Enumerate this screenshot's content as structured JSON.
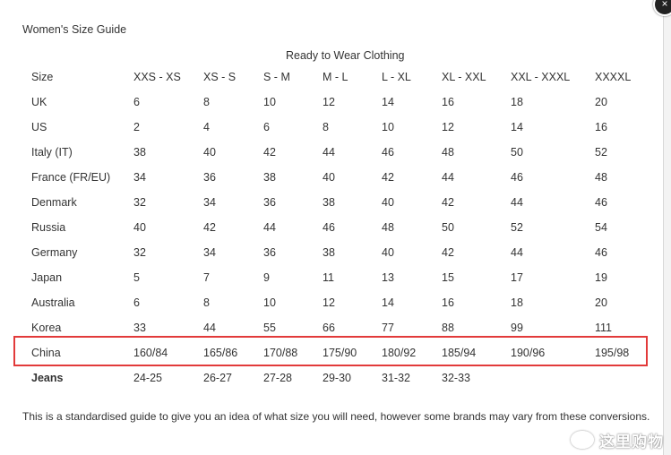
{
  "page": {
    "title": "Women's Size Guide",
    "caption": "Ready to Wear Clothing",
    "footnote": "This is a standardised guide to give you an idea of what size you will need, however some brands may vary from these conversions.",
    "close_icon": "×",
    "watermark": "这里购物"
  },
  "table": {
    "rows": [
      [
        "Size",
        "XXS - XS",
        "XS - S",
        "S - M",
        "M - L",
        "L - XL",
        "XL - XXL",
        "XXL - XXXL",
        "XXXXL"
      ],
      [
        "UK",
        "6",
        "8",
        "10",
        "12",
        "14",
        "16",
        "18",
        "20"
      ],
      [
        "US",
        "2",
        "4",
        "6",
        "8",
        "10",
        "12",
        "14",
        "16"
      ],
      [
        "Italy (IT)",
        "38",
        "40",
        "42",
        "44",
        "46",
        "48",
        "50",
        "52"
      ],
      [
        "France (FR/EU)",
        "34",
        "36",
        "38",
        "40",
        "42",
        "44",
        "46",
        "48"
      ],
      [
        "Denmark",
        "32",
        "34",
        "36",
        "38",
        "40",
        "42",
        "44",
        "46"
      ],
      [
        "Russia",
        "40",
        "42",
        "44",
        "46",
        "48",
        "50",
        "52",
        "54"
      ],
      [
        "Germany",
        "32",
        "34",
        "36",
        "38",
        "40",
        "42",
        "44",
        "46"
      ],
      [
        "Japan",
        "5",
        "7",
        "9",
        "11",
        "13",
        "15",
        "17",
        "19"
      ],
      [
        "Australia",
        "6",
        "8",
        "10",
        "12",
        "14",
        "16",
        "18",
        "20"
      ],
      [
        "Korea",
        "33",
        "44",
        "55",
        "66",
        "77",
        "88",
        "99",
        "111"
      ],
      [
        "China",
        "160/84",
        "165/86",
        "170/88",
        "175/90",
        "180/92",
        "185/94",
        "190/96",
        "195/98"
      ],
      [
        "Jeans",
        "24-25",
        "26-27",
        "27-28",
        "29-30",
        "31-32",
        "32-33",
        "",
        ""
      ]
    ]
  },
  "colors": {
    "highlight": "#e23a3a",
    "text": "#333333"
  }
}
